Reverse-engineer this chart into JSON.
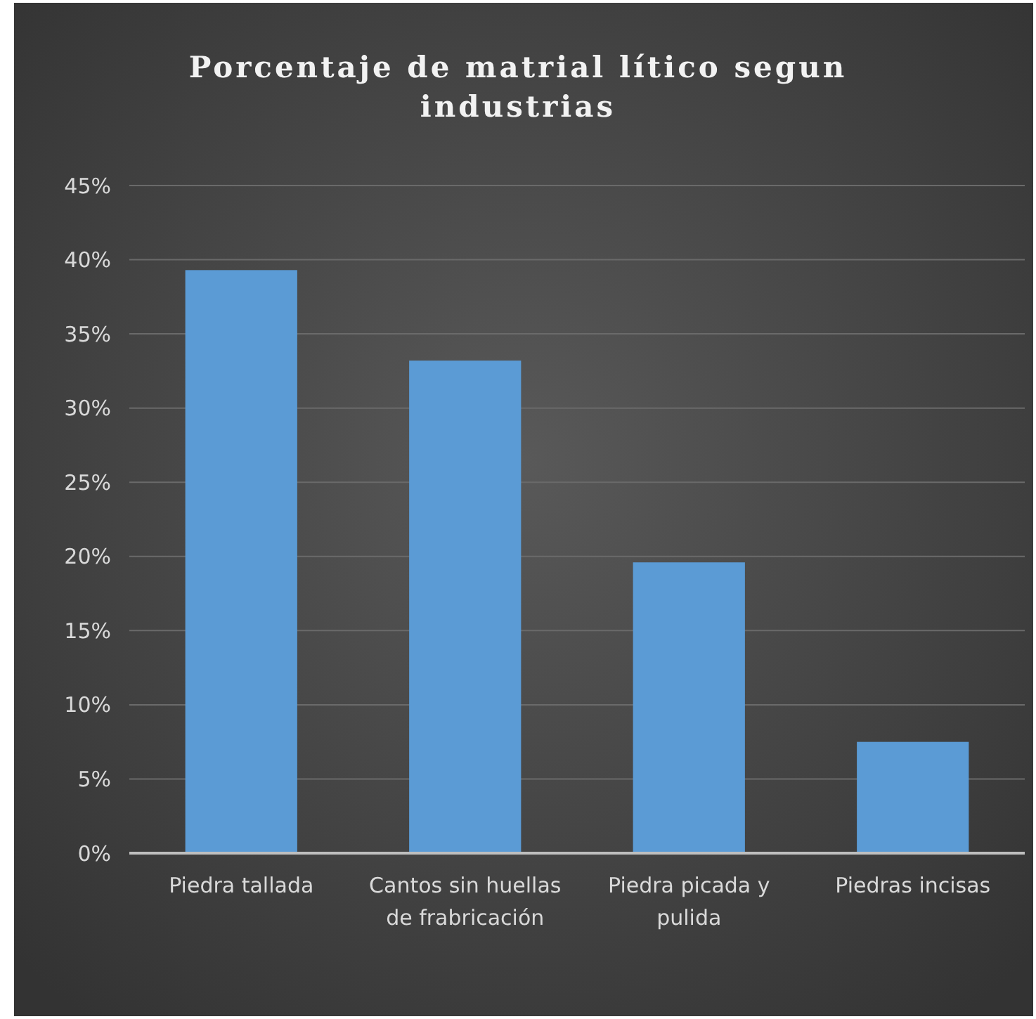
{
  "chart_data": {
    "type": "bar",
    "title": "Porcentaje de matrial lítico segun industrias",
    "categories": [
      "Piedra tallada",
      "Cantos sin huellas de frabricación",
      "Piedra picada y pulida",
      "Piedras incisas"
    ],
    "values": [
      39.3,
      33.2,
      19.6,
      7.5
    ],
    "color": "#5b9bd5",
    "ylim": [
      0,
      45
    ],
    "yticks": [
      {
        "value": 0,
        "label": "0%"
      },
      {
        "value": 5,
        "label": "5%"
      },
      {
        "value": 10,
        "label": "10%"
      },
      {
        "value": 15,
        "label": "15%"
      },
      {
        "value": 20,
        "label": "20%"
      },
      {
        "value": 25,
        "label": "25%"
      },
      {
        "value": 30,
        "label": "30%"
      },
      {
        "value": 35,
        "label": "35%"
      },
      {
        "value": 40,
        "label": "40%"
      },
      {
        "value": 45,
        "label": "45%"
      }
    ],
    "grid": true
  }
}
